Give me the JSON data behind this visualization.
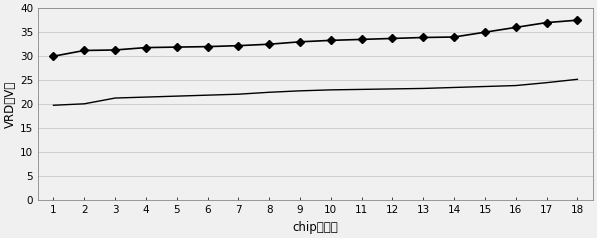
{
  "chip_labels": [
    1,
    2,
    3,
    4,
    5,
    6,
    7,
    8,
    9,
    10,
    11,
    12,
    13,
    14,
    15,
    16,
    17,
    18
  ],
  "series1_marker": {
    "values": [
      30.0,
      31.2,
      31.3,
      31.8,
      31.9,
      32.0,
      32.2,
      32.5,
      33.0,
      33.3,
      33.5,
      33.7,
      33.9,
      34.0,
      35.0,
      36.0,
      37.0,
      37.5
    ],
    "color": "#000000",
    "marker": "D",
    "markersize": 4,
    "linewidth": 1.2
  },
  "series2_line": {
    "values": [
      19.8,
      20.1,
      21.3,
      21.5,
      21.7,
      21.9,
      22.1,
      22.5,
      22.8,
      23.0,
      23.1,
      23.2,
      23.3,
      23.5,
      23.7,
      23.9,
      24.5,
      25.2
    ],
    "color": "#000000",
    "marker": null,
    "linewidth": 1.0
  },
  "ylim": [
    0,
    40
  ],
  "yticks": [
    0,
    5,
    10,
    15,
    20,
    25,
    30,
    35,
    40
  ],
  "xlim": [
    0.5,
    18.5
  ],
  "xlabel": "chip（颜）",
  "ylabel": "VRD（V）",
  "grid_color": "#c8c8c8",
  "background_color": "#f0f0f0",
  "plot_bg_color": "#f0f0f0",
  "tick_fontsize": 7.5,
  "label_fontsize": 8.5
}
